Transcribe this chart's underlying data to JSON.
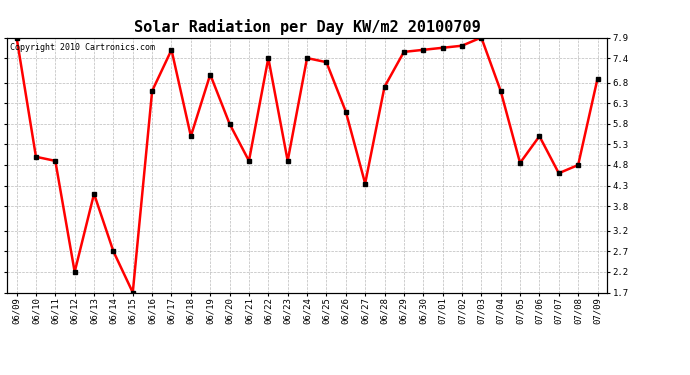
{
  "title": "Solar Radiation per Day KW/m2 20100709",
  "copyright_text": "Copyright 2010 Cartronics.com",
  "dates": [
    "06/09",
    "06/10",
    "06/11",
    "06/12",
    "06/13",
    "06/14",
    "06/15",
    "06/16",
    "06/17",
    "06/18",
    "06/19",
    "06/20",
    "06/21",
    "06/22",
    "06/23",
    "06/24",
    "06/25",
    "06/26",
    "06/27",
    "06/28",
    "06/29",
    "06/30",
    "07/01",
    "07/02",
    "07/03",
    "07/04",
    "07/05",
    "07/06",
    "07/07",
    "07/08",
    "07/09"
  ],
  "values": [
    7.9,
    5.0,
    4.9,
    2.2,
    4.1,
    2.7,
    1.7,
    6.6,
    7.6,
    5.5,
    7.0,
    5.8,
    4.9,
    7.4,
    4.9,
    7.4,
    7.3,
    6.1,
    4.35,
    6.7,
    7.55,
    7.6,
    7.65,
    7.7,
    7.9,
    6.6,
    4.85,
    5.5,
    4.6,
    4.8,
    6.9
  ],
  "line_color": "red",
  "marker": "s",
  "marker_size": 3,
  "marker_color": "black",
  "bg_color": "#ffffff",
  "plot_bg_color": "#ffffff",
  "grid_color": "#bbbbbb",
  "ylim": [
    1.7,
    7.9
  ],
  "yticks": [
    1.7,
    2.2,
    2.7,
    3.2,
    3.8,
    4.3,
    4.8,
    5.3,
    5.8,
    6.3,
    6.8,
    7.4,
    7.9
  ],
  "title_fontsize": 11,
  "copyright_fontsize": 6,
  "tick_fontsize": 6.5,
  "line_width": 1.8
}
